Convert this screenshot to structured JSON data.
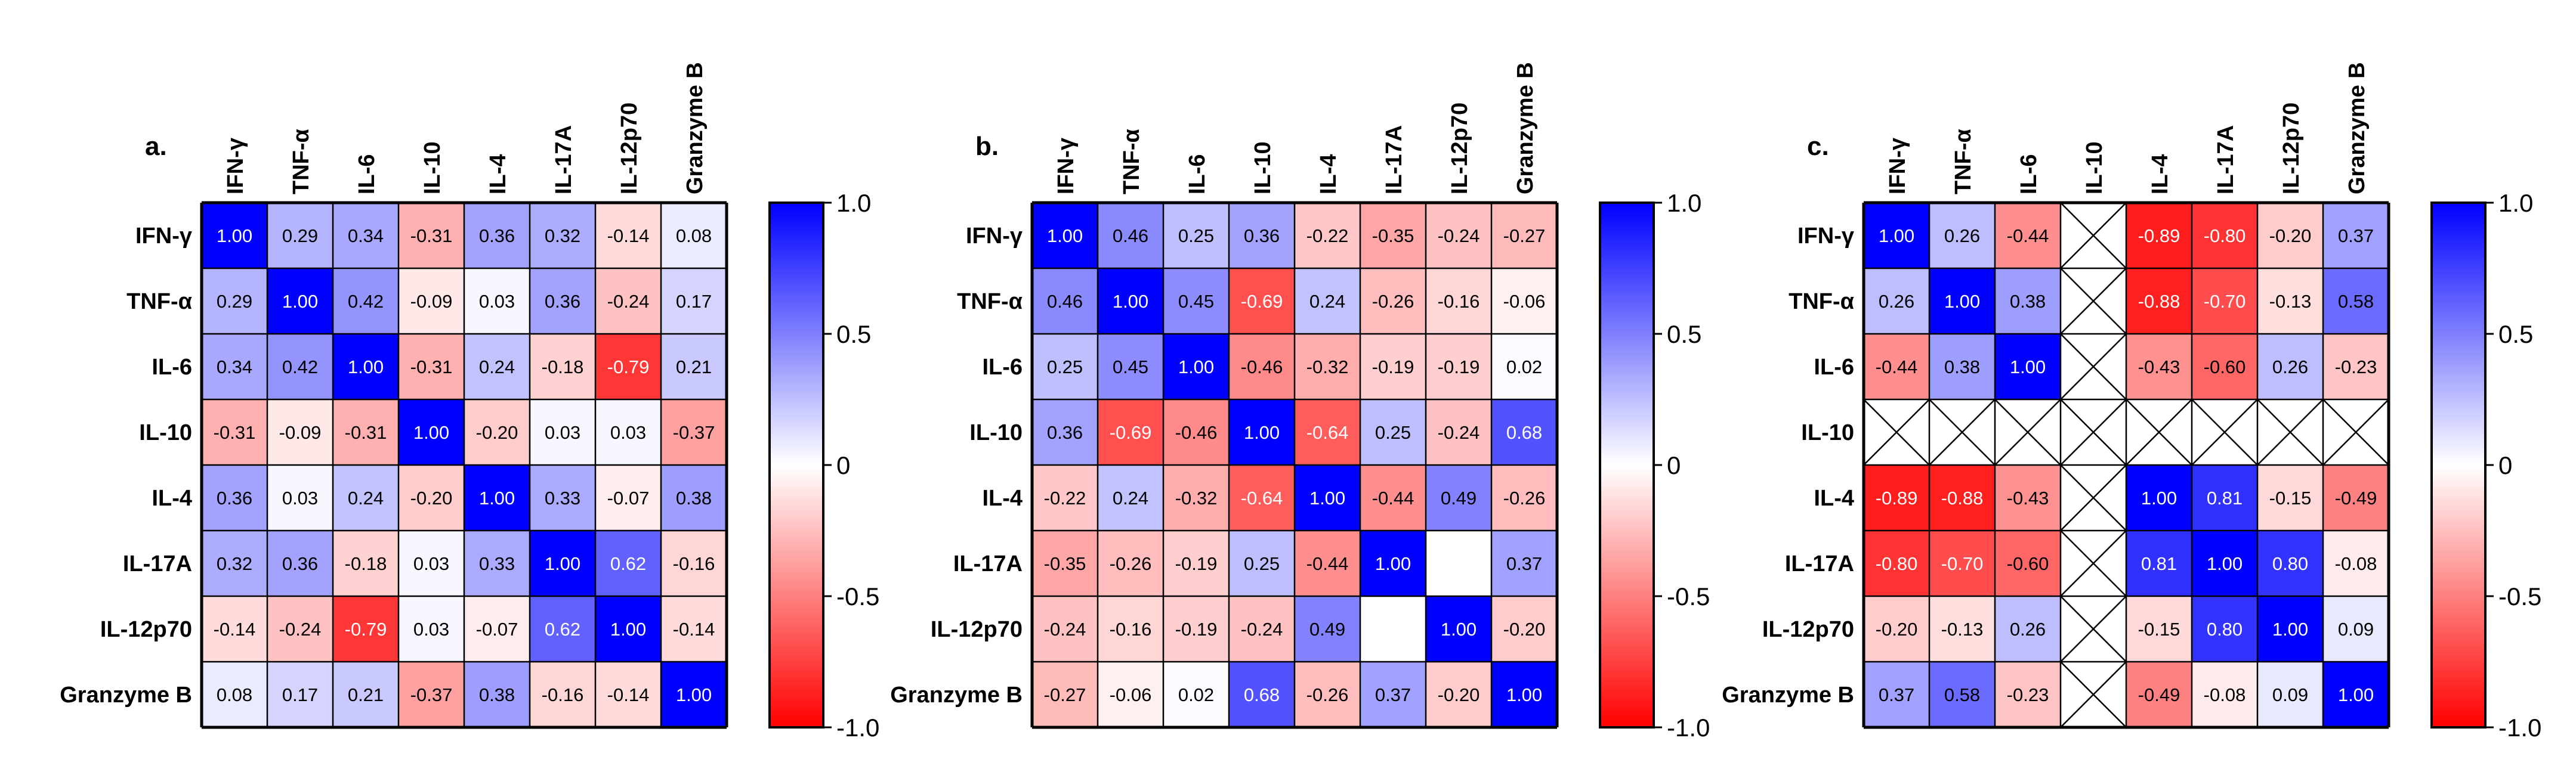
{
  "colors": {
    "negative": "#ff0000",
    "zero": "#ffffff",
    "positive": "#0000ff",
    "grid": "#000000"
  },
  "chart_data": [
    {
      "type": "heatmap",
      "title": "a.",
      "row_labels": [
        "IFN-γ",
        "TNF-α",
        "IL-6",
        "IL-10",
        "IL-4",
        "IL-17A",
        "IL-12p70",
        "Granzyme B"
      ],
      "col_labels": [
        "IFN-γ",
        "TNF-α",
        "IL-6",
        "IL-10",
        "IL-4",
        "IL-17A",
        "IL-12p70",
        "Granzyme B"
      ],
      "values": [
        [
          1.0,
          0.29,
          0.34,
          -0.31,
          0.36,
          0.32,
          -0.14,
          0.08
        ],
        [
          0.29,
          1.0,
          0.42,
          -0.09,
          0.03,
          0.36,
          -0.24,
          0.17
        ],
        [
          0.34,
          0.42,
          1.0,
          -0.31,
          0.24,
          -0.18,
          -0.79,
          0.21
        ],
        [
          -0.31,
          -0.09,
          -0.31,
          1.0,
          -0.2,
          0.03,
          0.03,
          -0.37
        ],
        [
          0.36,
          0.03,
          0.24,
          -0.2,
          1.0,
          0.33,
          -0.07,
          0.38
        ],
        [
          0.32,
          0.36,
          -0.18,
          0.03,
          0.33,
          1.0,
          0.62,
          -0.16
        ],
        [
          -0.14,
          -0.24,
          -0.79,
          0.03,
          -0.07,
          0.62,
          1.0,
          -0.14
        ],
        [
          0.08,
          0.17,
          0.21,
          -0.37,
          0.38,
          -0.16,
          -0.14,
          1.0
        ]
      ],
      "colorbar": {
        "range": [
          -1.0,
          1.0
        ],
        "ticks": [
          "1.0",
          "0.5",
          "0",
          "-0.5",
          "-1.0"
        ]
      }
    },
    {
      "type": "heatmap",
      "title": "b.",
      "row_labels": [
        "IFN-γ",
        "TNF-α",
        "IL-6",
        "IL-10",
        "IL-4",
        "IL-17A",
        "IL-12p70",
        "Granzyme B"
      ],
      "col_labels": [
        "IFN-γ",
        "TNF-α",
        "IL-6",
        "IL-10",
        "IL-4",
        "IL-17A",
        "IL-12p70",
        "Granzyme B"
      ],
      "values": [
        [
          1.0,
          0.46,
          0.25,
          0.36,
          -0.22,
          -0.35,
          -0.24,
          -0.27
        ],
        [
          0.46,
          1.0,
          0.45,
          -0.69,
          0.24,
          -0.26,
          -0.16,
          -0.06
        ],
        [
          0.25,
          0.45,
          1.0,
          -0.46,
          -0.32,
          -0.19,
          -0.19,
          0.02
        ],
        [
          0.36,
          -0.69,
          -0.46,
          1.0,
          -0.64,
          0.25,
          -0.24,
          0.68
        ],
        [
          -0.22,
          0.24,
          -0.32,
          -0.64,
          1.0,
          -0.44,
          0.49,
          -0.26
        ],
        [
          -0.35,
          -0.26,
          -0.19,
          0.25,
          -0.44,
          1.0,
          null,
          0.37
        ],
        [
          -0.24,
          -0.16,
          -0.19,
          -0.24,
          0.49,
          null,
          1.0,
          -0.2
        ],
        [
          -0.27,
          -0.06,
          0.02,
          0.68,
          -0.26,
          0.37,
          -0.2,
          1.0
        ]
      ],
      "colorbar": {
        "range": [
          -1.0,
          1.0
        ],
        "ticks": [
          "1.0",
          "0.5",
          "0",
          "-0.5",
          "-1.0"
        ]
      }
    },
    {
      "type": "heatmap",
      "title": "c.",
      "row_labels": [
        "IFN-γ",
        "TNF-α",
        "IL-6",
        "IL-10",
        "IL-4",
        "IL-17A",
        "IL-12p70",
        "Granzyme B"
      ],
      "col_labels": [
        "IFN-γ",
        "TNF-α",
        "IL-6",
        "IL-10",
        "IL-4",
        "IL-17A",
        "IL-12p70",
        "Granzyme B"
      ],
      "values": [
        [
          1.0,
          0.26,
          -0.44,
          "x",
          -0.89,
          -0.8,
          -0.2,
          0.37
        ],
        [
          0.26,
          1.0,
          0.38,
          "x",
          -0.88,
          -0.7,
          -0.13,
          0.58
        ],
        [
          -0.44,
          0.38,
          1.0,
          "x",
          -0.43,
          -0.6,
          0.26,
          -0.23
        ],
        [
          "x",
          "x",
          "x",
          "x",
          "x",
          "x",
          "x",
          "x"
        ],
        [
          -0.89,
          -0.88,
          -0.43,
          "x",
          1.0,
          0.81,
          -0.15,
          -0.49
        ],
        [
          -0.8,
          -0.7,
          -0.6,
          "x",
          0.81,
          1.0,
          0.8,
          -0.08
        ],
        [
          -0.2,
          -0.13,
          0.26,
          "x",
          -0.15,
          0.8,
          1.0,
          0.09
        ],
        [
          0.37,
          0.58,
          -0.23,
          "x",
          -0.49,
          -0.08,
          0.09,
          1.0
        ]
      ],
      "colorbar": {
        "range": [
          -1.0,
          1.0
        ],
        "ticks": [
          "1.0",
          "0.5",
          "0",
          "-0.5",
          "-1.0"
        ]
      }
    }
  ]
}
